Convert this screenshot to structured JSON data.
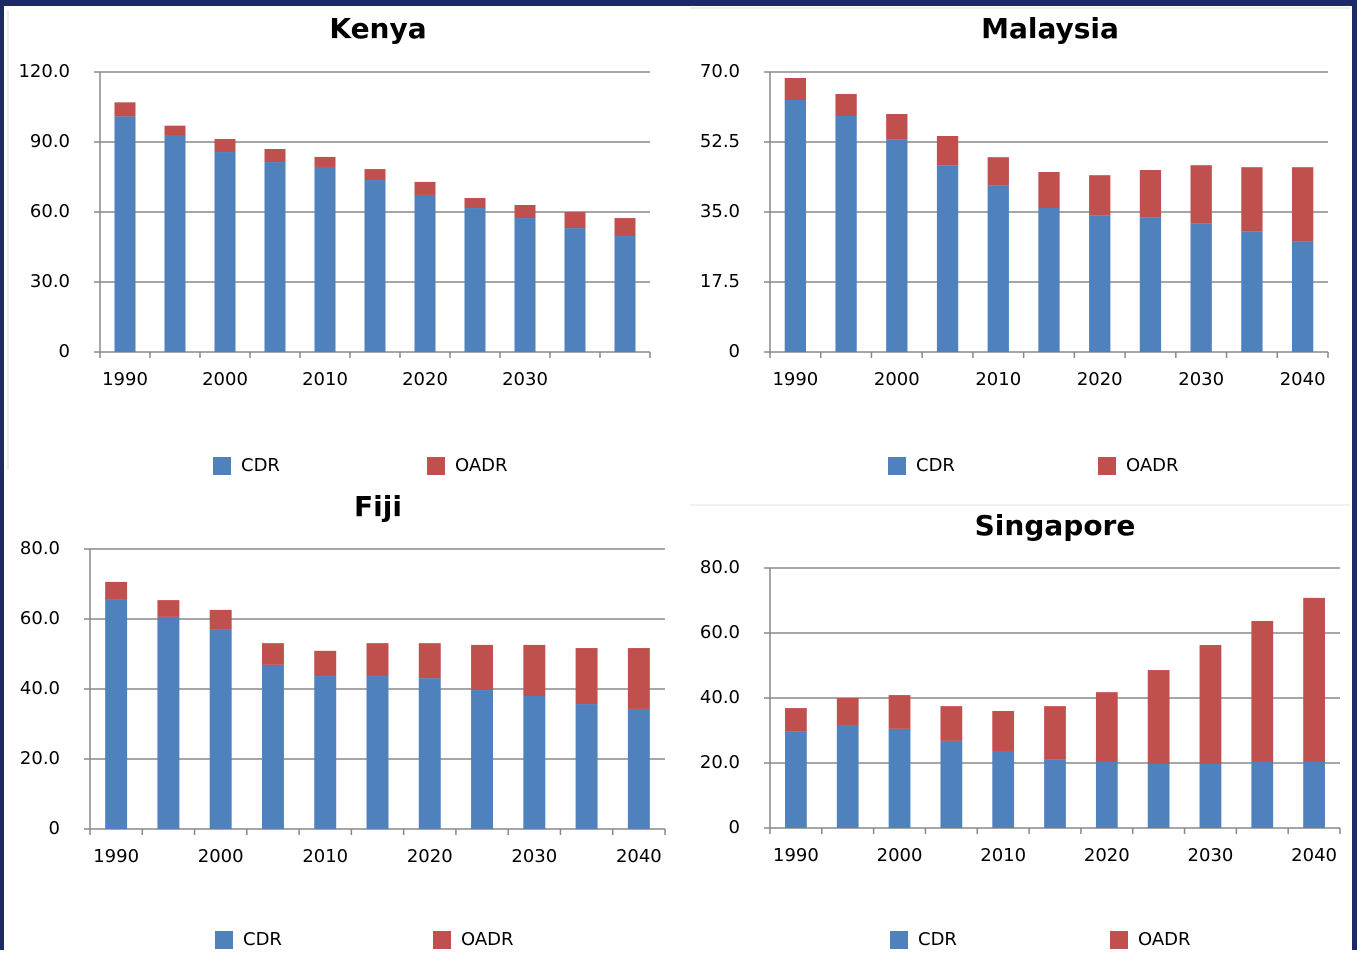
{
  "chart_data": [
    {
      "type": "bar",
      "stacked": true,
      "title": "Kenya",
      "categories": [
        "1990",
        null,
        "2000",
        null,
        "2010",
        null,
        "2020",
        null,
        "2030",
        null,
        null
      ],
      "series": [
        {
          "name": "CDR",
          "color": "#4f81bd",
          "values": [
            101,
            92.6,
            85.7,
            81.4,
            79.3,
            73.7,
            67.3,
            61.7,
            57.4,
            53.1,
            49.7
          ]
        },
        {
          "name": "OADR",
          "color": "#c0504d",
          "values": [
            6,
            4.4,
            5.6,
            5.6,
            4.3,
            4.7,
            5.6,
            4.3,
            5.6,
            6.9,
            7.7
          ]
        }
      ],
      "ylim": [
        0,
        120
      ],
      "yticks": [
        0,
        {
          "value": 30,
          "label": "30.0"
        },
        {
          "value": 60,
          "label": "60.0"
        },
        {
          "value": 90,
          "label": "90.0"
        },
        {
          "value": 120,
          "label": "120.0"
        }
      ],
      "grid": true,
      "legend": "bottom"
    },
    {
      "type": "bar",
      "stacked": true,
      "title": "Malaysia",
      "categories": [
        "1990",
        null,
        "2000",
        null,
        "2010",
        null,
        "2020",
        null,
        "2030",
        null,
        "2040"
      ],
      "series": [
        {
          "name": "CDR",
          "color": "#4f81bd",
          "values": [
            63,
            59,
            53.2,
            46.7,
            41.7,
            36,
            34.2,
            33.7,
            32.2,
            30.2,
            27.7
          ]
        },
        {
          "name": "OADR",
          "color": "#c0504d",
          "values": [
            5.5,
            5.5,
            6.3,
            7.3,
            7,
            9,
            10,
            11.8,
            14.5,
            16,
            18.5
          ]
        }
      ],
      "ylim": [
        0,
        70
      ],
      "yticks": [
        0,
        17.5,
        {
          "value": 35,
          "label": "35.0"
        },
        52.5,
        {
          "value": 70,
          "label": "70.0"
        }
      ],
      "grid": true,
      "legend": "bottom"
    },
    {
      "type": "bar",
      "stacked": true,
      "title": "Fiji",
      "categories": [
        "1990",
        null,
        "2000",
        null,
        "2010",
        null,
        "2020",
        null,
        "2030",
        null,
        "2040"
      ],
      "series": [
        {
          "name": "CDR",
          "color": "#4f81bd",
          "values": [
            65.7,
            60.6,
            56.9,
            46.9,
            43.7,
            43.7,
            43.1,
            39.7,
            38,
            35.7,
            34.3
          ]
        },
        {
          "name": "OADR",
          "color": "#c0504d",
          "values": [
            4.9,
            4.8,
            5.7,
            6.2,
            7.2,
            9.4,
            10,
            12.9,
            14.6,
            16,
            17.4
          ]
        }
      ],
      "ylim": [
        0,
        80
      ],
      "yticks": [
        0,
        {
          "value": 20,
          "label": "20.0"
        },
        {
          "value": 40,
          "label": "40.0"
        },
        {
          "value": 60,
          "label": "60.0"
        },
        {
          "value": 80,
          "label": "80.0"
        }
      ],
      "grid": true,
      "legend": "bottom"
    },
    {
      "type": "bar",
      "stacked": true,
      "title": "Singapore",
      "categories": [
        "1990",
        null,
        "2000",
        null,
        "2010",
        null,
        "2020",
        null,
        "2030",
        null,
        "2040"
      ],
      "series": [
        {
          "name": "CDR",
          "color": "#4f81bd",
          "values": [
            29.8,
            31.7,
            30.5,
            26.8,
            23.7,
            21.2,
            20.3,
            19.7,
            19.7,
            20.3,
            20.3
          ]
        },
        {
          "name": "OADR",
          "color": "#c0504d",
          "values": [
            7.1,
            8.3,
            10.4,
            10.7,
            12.3,
            16.3,
            21.5,
            28.9,
            36.6,
            43.4,
            50.5
          ]
        }
      ],
      "ylim": [
        0,
        80
      ],
      "yticks": [
        0,
        {
          "value": 20,
          "label": "20.0"
        },
        {
          "value": 40,
          "label": "40.0"
        },
        {
          "value": 60,
          "label": "60.0"
        },
        {
          "value": 80,
          "label": "80.0"
        }
      ],
      "grid": true,
      "legend": "bottom"
    }
  ]
}
